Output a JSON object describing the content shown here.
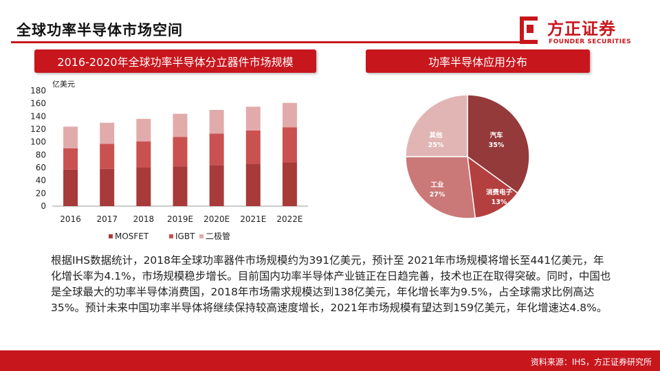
{
  "page": {
    "title": "全球功率半导体市场空间"
  },
  "logo": {
    "name_cn": "方正证券",
    "name_en": "FOUNDER SECURITIES"
  },
  "colors": {
    "brand_red": "#c8161d",
    "mosfet": "#a83a3a",
    "igbt": "#c9514f",
    "diode": "#e2abab"
  },
  "left_panel": {
    "header": "2016-2020年全球功率半导体分立器件市场规模"
  },
  "right_panel": {
    "header": "功率半导体应用分布"
  },
  "chart_data": [
    {
      "type": "bar",
      "stacked": true,
      "title": "2016-2020年全球功率半导体分立器件市场规模",
      "ylabel": "亿美元",
      "ylim": [
        0,
        180
      ],
      "yticks": [
        0,
        20,
        40,
        60,
        80,
        100,
        120,
        140,
        160,
        180
      ],
      "categories": [
        "2016",
        "2017",
        "2018",
        "2019E",
        "2020E",
        "2021E",
        "2022E"
      ],
      "series": [
        {
          "name": "MOSFET",
          "values": [
            57,
            58,
            60,
            62,
            64,
            66,
            68
          ]
        },
        {
          "name": "IGBT",
          "values": [
            33,
            39,
            41,
            46,
            49,
            52,
            55
          ]
        },
        {
          "name": "二极管",
          "values": [
            34,
            33,
            35,
            36,
            37,
            37,
            38
          ]
        }
      ],
      "legend": "bottom",
      "grid": false
    },
    {
      "type": "pie",
      "title": "功率半导体应用分布",
      "slices": [
        {
          "label": "汽车",
          "value": 35,
          "pct": "35%"
        },
        {
          "label": "消费电子",
          "value": 13,
          "pct": "13%"
        },
        {
          "label": "工业",
          "value": 27,
          "pct": "27%"
        },
        {
          "label": "其他",
          "value": 25,
          "pct": "25%"
        }
      ]
    }
  ],
  "body": {
    "text": "根据IHS数据统计，2018年全球功率器件市场规模约为391亿美元，预计至 2021年市场规模将增长至441亿美元，年化增长率为4.1%，市场规模稳步增长。目前国内功率半导体产业链正在日趋完善，技术也正在取得突破。同时，中国也是全球最大的功率半导体消费国，2018年市场需求规模达到138亿美元，年化增长率为9.5%，占全球需求比例高达35%。预计未来中国功率半导体将继续保持较高速度增长，2021年市场规模有望达到159亿美元，年化增速达4.8%。"
  },
  "footer": {
    "source": "资料来源：IHS，方正证券研究所"
  }
}
